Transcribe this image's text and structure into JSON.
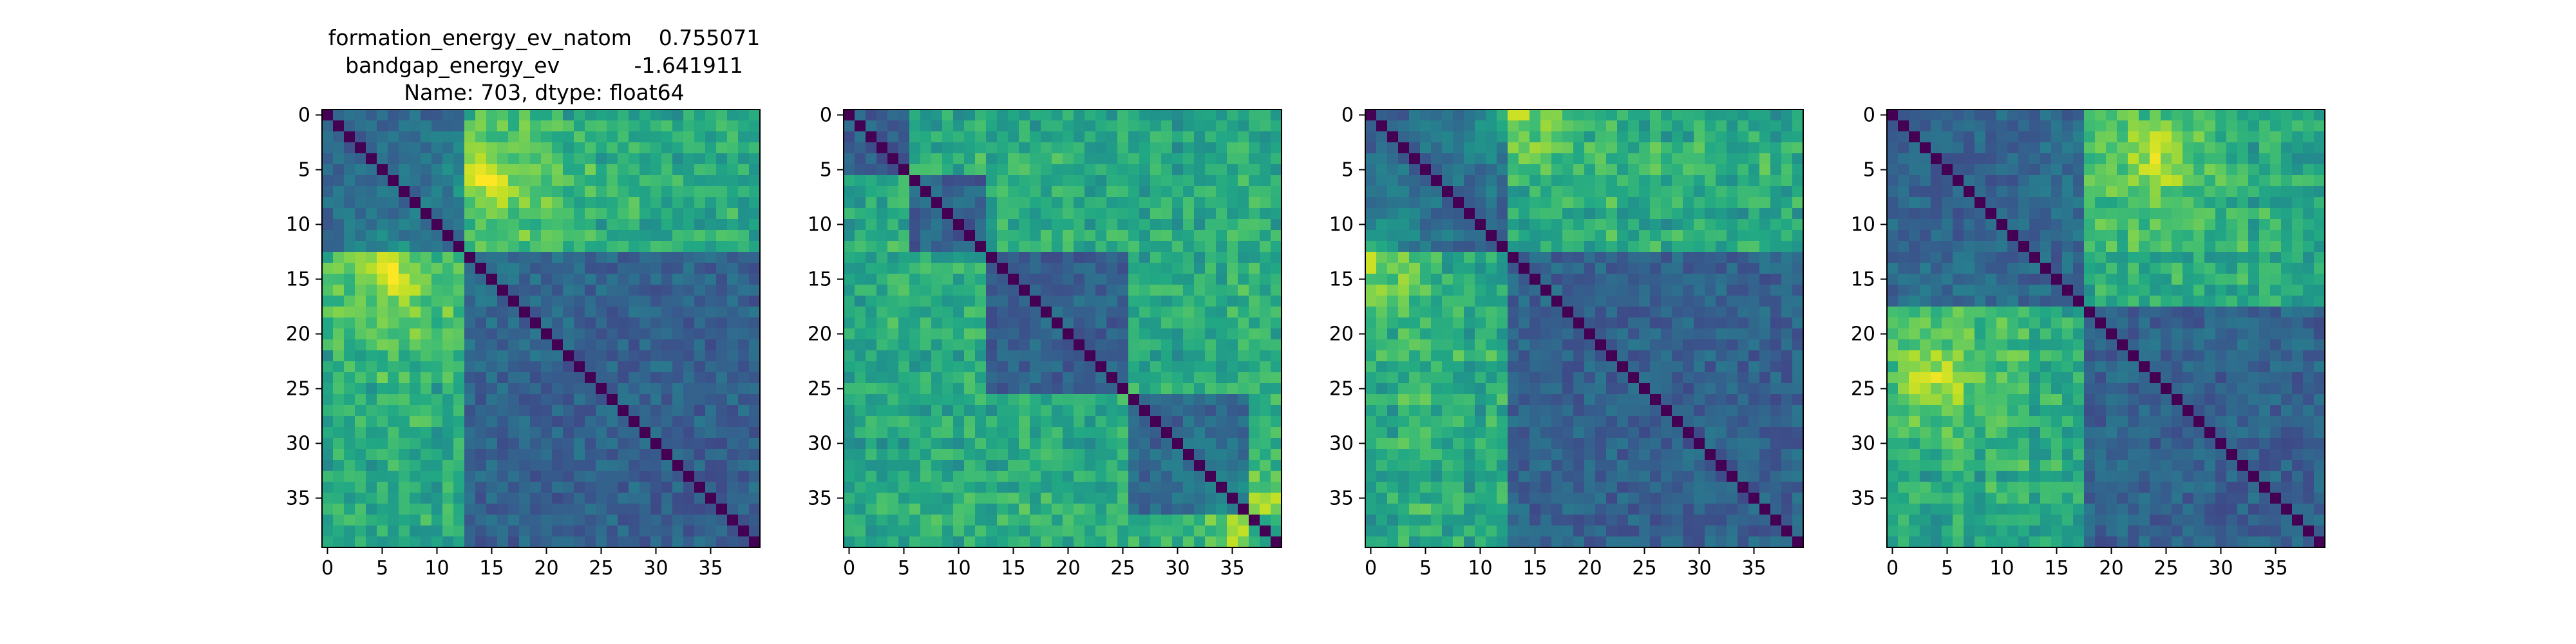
{
  "figure": {
    "title_lines": [
      "formation_energy_ev_natom    0.755071",
      "bandgap_energy_ev           -1.641911",
      "Name: 703, dtype: float64"
    ]
  },
  "chart_data": [
    {
      "type": "heatmap",
      "title": "",
      "xlabel": "",
      "ylabel": "",
      "colormap": "viridis",
      "size": 40,
      "xticks": [
        0,
        5,
        10,
        15,
        20,
        25,
        30,
        35
      ],
      "yticks": [
        0,
        5,
        10,
        15,
        20,
        25,
        30,
        35
      ],
      "block_boundaries": [
        13
      ],
      "description": "40x40 symmetric distance matrix, zero diagonal; rows/cols 0-12 vs 13-39 high (yellow-green) off-diagonal blocks",
      "max_value_location": [
        15,
        6
      ]
    },
    {
      "type": "heatmap",
      "title": "",
      "xlabel": "",
      "ylabel": "",
      "colormap": "viridis",
      "size": 40,
      "xticks": [
        0,
        5,
        10,
        15,
        20,
        25,
        30,
        35
      ],
      "yticks": [
        0,
        5,
        10,
        15,
        20,
        25,
        30,
        35
      ],
      "block_boundaries": [
        6,
        13,
        26,
        37
      ],
      "description": "40x40 symmetric distance matrix with alternating blocks; brightest at rows/cols 37-39 vs 0-5 and 26-30",
      "max_value_location": [
        38,
        37
      ]
    },
    {
      "type": "heatmap",
      "title": "",
      "xlabel": "",
      "ylabel": "",
      "colormap": "viridis",
      "size": 40,
      "xticks": [
        0,
        5,
        10,
        15,
        20,
        25,
        30,
        35
      ],
      "yticks": [
        0,
        5,
        10,
        15,
        20,
        25,
        30,
        35
      ],
      "block_boundaries": [
        13
      ],
      "description": "40x40 symmetric distance matrix; rows/cols 0-12 vs 13-29 high off-diagonal blocks",
      "max_value_location": [
        0,
        13
      ]
    },
    {
      "type": "heatmap",
      "title": "",
      "xlabel": "",
      "ylabel": "",
      "colormap": "viridis",
      "size": 40,
      "xticks": [
        0,
        5,
        10,
        15,
        20,
        25,
        30,
        35
      ],
      "yticks": [
        0,
        5,
        10,
        15,
        20,
        25,
        30,
        35
      ],
      "block_boundaries": [
        18
      ],
      "description": "40x40 symmetric distance matrix; rows/cols 0-17 vs 18-39 high off-diagonal blocks",
      "max_value_location": [
        24,
        4
      ]
    }
  ]
}
